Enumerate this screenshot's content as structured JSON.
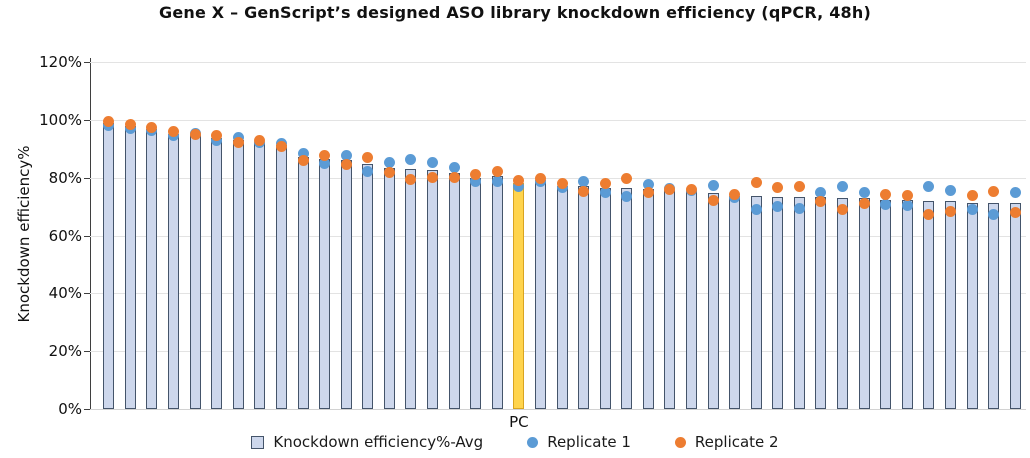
{
  "title": "Gene X – GenScript’s designed ASO library knockdown efficiency (qPCR, 48h)",
  "y_axis": {
    "label": "Knockdown efficiency%",
    "tick_labels": [
      "120%",
      "100%",
      "80%",
      "60%",
      "40%",
      "20%",
      "0%"
    ],
    "tick_values": [
      120,
      100,
      80,
      60,
      40,
      20,
      0
    ]
  },
  "x_axis": {
    "pc_label": "PC"
  },
  "legend": {
    "avg_label": "Knockdown efficiency%-Avg",
    "rep1_label": "Replicate 1",
    "rep2_label": "Replicate 2"
  },
  "colors": {
    "bar_fill": "#CDD7EC",
    "bar_border": "#44546A",
    "pc_fill": "#FFD44D",
    "pc_border": "#D9A420",
    "rep1": "#5B9BD5",
    "rep2": "#ED7D31",
    "gridline": "#E3E3E3",
    "axis": "#3F3F3F"
  },
  "chart_data": {
    "type": "bar",
    "title": "Gene X – GenScript’s designed ASO library knockdown efficiency (qPCR, 48h)",
    "ylabel": "Knockdown efficiency%",
    "ylim": [
      0,
      120
    ],
    "y_tick_step": 20,
    "grid": true,
    "legend_position": "bottom",
    "n_bars": 43,
    "pc_bar_index": 20,
    "x_axis_labels": {
      "20": "PC"
    },
    "series": [
      {
        "name": "Knockdown efficiency%-Avg",
        "type": "bar",
        "values": [
          98.8,
          97.8,
          96.7,
          95.2,
          95.1,
          93.8,
          92.9,
          92.5,
          91.3,
          87.3,
          86.4,
          86.0,
          84.6,
          83.5,
          82.9,
          82.7,
          81.7,
          80.0,
          80.6,
          78.0,
          79.1,
          77.2,
          77.1,
          76.5,
          76.6,
          76.2,
          76.0,
          75.7,
          74.8,
          73.6,
          73.6,
          73.4,
          73.2,
          73.4,
          73.1,
          73.0,
          72.4,
          72.2,
          72.0,
          72.0,
          71.4,
          71.2,
          71.4
        ]
      },
      {
        "name": "Replicate 1",
        "type": "scatter",
        "values": [
          98.0,
          97.0,
          96.2,
          94.6,
          95.4,
          93.0,
          93.8,
          92.2,
          91.8,
          88.5,
          85.0,
          87.6,
          82.3,
          85.1,
          86.3,
          85.1,
          83.4,
          78.8,
          78.8,
          77.0,
          78.6,
          76.5,
          78.8,
          75.0,
          73.6,
          77.6,
          76.1,
          75.5,
          77.3,
          73.0,
          69.0,
          70.2,
          69.4,
          74.8,
          77.1,
          74.8,
          70.7,
          70.4,
          76.8,
          75.7,
          69.0,
          67.2,
          74.9
        ]
      },
      {
        "name": "Replicate 2",
        "type": "scatter",
        "values": [
          99.5,
          98.5,
          97.2,
          95.8,
          94.8,
          94.6,
          92.0,
          92.8,
          90.8,
          86.0,
          87.8,
          84.4,
          86.9,
          81.9,
          79.4,
          80.2,
          80.0,
          81.1,
          82.3,
          79.0,
          79.6,
          77.9,
          75.3,
          77.9,
          79.6,
          74.8,
          75.8,
          75.9,
          72.2,
          74.2,
          78.2,
          76.6,
          77.0,
          71.9,
          69.0,
          71.2,
          74.1,
          74.0,
          67.2,
          68.3,
          73.8,
          75.2,
          67.9
        ]
      }
    ]
  }
}
